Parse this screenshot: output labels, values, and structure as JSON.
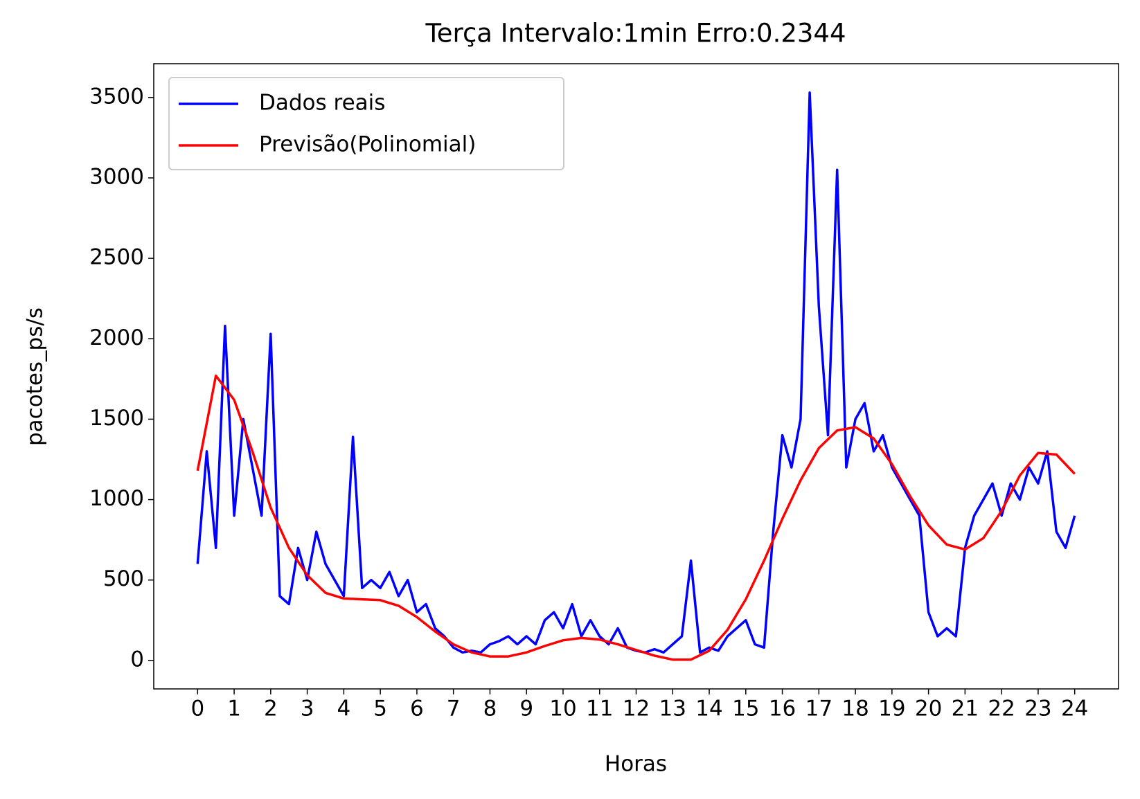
{
  "chart_data": {
    "type": "line",
    "title": "Terça Intervalo:1min Erro:0.2344",
    "xlabel": "Horas",
    "ylabel": "pacotes_ps/s",
    "xlim": [
      -1.2,
      25.2
    ],
    "ylim": [
      -177,
      3710
    ],
    "xticks": [
      0,
      1,
      2,
      3,
      4,
      5,
      6,
      7,
      8,
      9,
      10,
      11,
      12,
      13,
      14,
      15,
      16,
      17,
      18,
      19,
      20,
      21,
      22,
      23,
      24
    ],
    "yticks": [
      0,
      500,
      1000,
      1500,
      2000,
      2500,
      3000,
      3500
    ],
    "legend": "upper left",
    "series": [
      {
        "name": "Dados reais",
        "color": "#0000ff",
        "x": [
          0,
          0.25,
          0.5,
          0.75,
          1,
          1.25,
          1.5,
          1.75,
          2,
          2.25,
          2.5,
          2.75,
          3,
          3.25,
          3.5,
          3.75,
          4,
          4.25,
          4.5,
          4.75,
          5,
          5.25,
          5.5,
          5.75,
          6,
          6.25,
          6.5,
          6.75,
          7,
          7.25,
          7.5,
          7.75,
          8,
          8.25,
          8.5,
          8.75,
          9,
          9.25,
          9.5,
          9.75,
          10,
          10.25,
          10.5,
          10.75,
          11,
          11.25,
          11.5,
          11.75,
          12,
          12.25,
          12.5,
          12.75,
          13,
          13.25,
          13.5,
          13.75,
          14,
          14.25,
          14.5,
          14.75,
          15,
          15.25,
          15.5,
          15.75,
          16,
          16.25,
          16.5,
          16.75,
          17,
          17.25,
          17.5,
          17.75,
          18,
          18.25,
          18.5,
          18.75,
          19,
          19.25,
          19.5,
          19.75,
          20,
          20.25,
          20.5,
          20.75,
          21,
          21.25,
          21.5,
          21.75,
          22,
          22.25,
          22.5,
          22.75,
          23,
          23.25,
          23.5,
          23.75,
          24
        ],
        "values": [
          600,
          1300,
          700,
          2080,
          900,
          1500,
          1200,
          900,
          2030,
          400,
          350,
          700,
          500,
          800,
          600,
          500,
          400,
          1390,
          450,
          500,
          450,
          550,
          400,
          500,
          300,
          350,
          200,
          150,
          80,
          50,
          60,
          50,
          100,
          120,
          150,
          100,
          150,
          100,
          250,
          300,
          200,
          350,
          150,
          250,
          150,
          100,
          200,
          80,
          60,
          50,
          70,
          50,
          100,
          150,
          620,
          50,
          80,
          60,
          150,
          200,
          250,
          100,
          80,
          800,
          1400,
          1200,
          1500,
          3530,
          2200,
          1400,
          3050,
          1200,
          1500,
          1600,
          1300,
          1400,
          1200,
          1100,
          1000,
          900,
          300,
          150,
          200,
          150,
          700,
          900,
          1000,
          1100,
          900,
          1100,
          1000,
          1200,
          1100,
          1300,
          800,
          700,
          900
        ]
      },
      {
        "name": "Previsão(Polinomial)",
        "color": "#ff0000",
        "x": [
          0,
          0.5,
          1,
          1.5,
          2,
          2.5,
          3,
          3.5,
          4,
          4.5,
          5,
          5.5,
          6,
          6.5,
          7,
          7.5,
          8,
          8.5,
          9,
          9.5,
          10,
          10.5,
          11,
          11.5,
          12,
          12.5,
          13,
          13.5,
          14,
          14.5,
          15,
          15.5,
          16,
          16.5,
          17,
          17.5,
          18,
          18.5,
          19,
          19.5,
          20,
          20.5,
          21,
          21.5,
          22,
          22.5,
          23,
          23.5,
          24
        ],
        "values": [
          1180,
          1770,
          1620,
          1300,
          950,
          700,
          530,
          420,
          385,
          380,
          375,
          340,
          270,
          180,
          100,
          50,
          25,
          25,
          50,
          90,
          125,
          140,
          130,
          100,
          65,
          30,
          5,
          5,
          60,
          190,
          380,
          620,
          880,
          1120,
          1320,
          1430,
          1450,
          1380,
          1220,
          1020,
          840,
          720,
          690,
          760,
          930,
          1150,
          1290,
          1280,
          1160
        ]
      }
    ]
  }
}
